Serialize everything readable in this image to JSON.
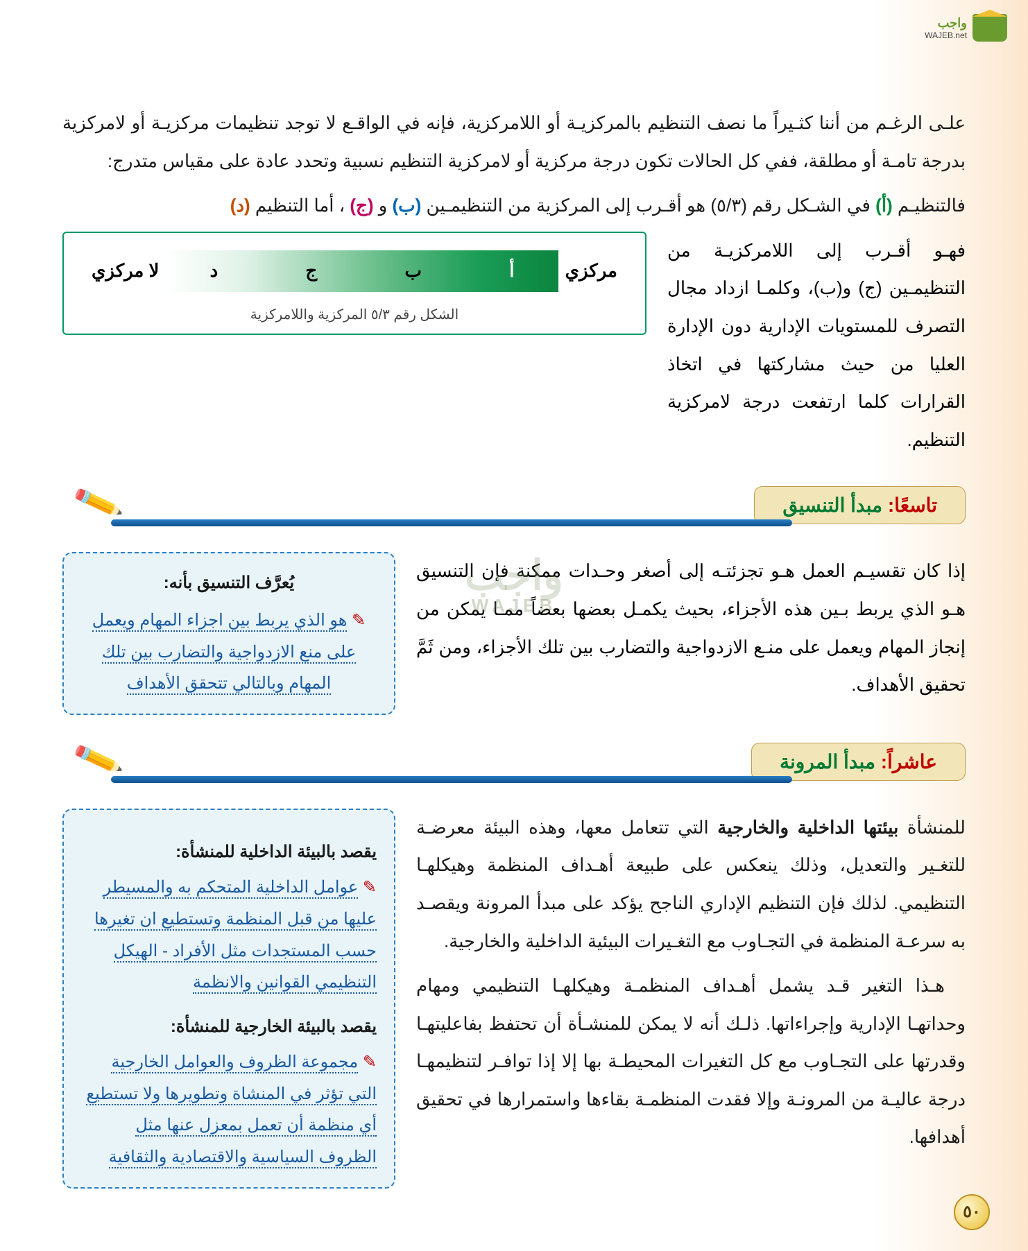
{
  "logo": {
    "brand_ar": "واجب",
    "brand_en": "WAJEB.net"
  },
  "intro": {
    "p1_a": "علـى الرغـم من أننا كثـيراً ما نصف التنظيم بالمركزيـة أو اللامركزية، فإنه في الواقـع لا توجد تنظيمات مركزيـة أو لامركزية بدرجة تامـة أو مطلقة، ففي كل الحالات تكون درجة مركزية أو لامركزية التنظيم نسبية وتحدد عادة على مقياس متدرج:",
    "p2_lead": "فالتنظيـم ",
    "p2_a": "(أ)",
    "p2_mid1": " في الشـكل رقم (٥/٣) هو أقـرب إلى المركزية من التنظيمـين ",
    "p2_b": "(ب)",
    "p2_and1": " و",
    "p2_c": "(ج)",
    "p2_mid2": "، أما التنظيم ",
    "p2_d": "(د)"
  },
  "aside1": "فهـو أقـرب إلى اللامركزيـة من التنظيمـين (ج) و(ب)، وكلمـا ازداد مجال التصرف للمستويات الإدارية دون الإدارة العليا من حيث مشاركتها في اتخاذ القرارات كلما ارتفعت درجة لامركزية التنظيم.",
  "diagram": {
    "right_label": "مركزي",
    "left_label": "لا مركزي",
    "letters": [
      "أ",
      "ب",
      "ج",
      "د"
    ],
    "caption": "الشكل رقم ٥/٣ المركزية واللامركزية",
    "gradient_from": "#ffffff",
    "gradient_to": "#0b853f"
  },
  "sec9": {
    "ord": "تاسعًا:",
    "name": "مبدأ التنسيق",
    "body": "إذا كان تقسيـم العمل هـو تجزئتـه إلى أصغر وحـدات ممكنة فإن التنسيق هـو الذي يربط بـين هذه الأجزاء، بحيث يكمـل بعضها بعضاً ممـا يمكن من إنجاز المهام ويعمل على منـع الازدواجية والتضارب بين تلك الأجزاء، ومن ثَمَّ تحقيق الأهداف.",
    "note_title": "يُعرَّف التنسيق بأنه:",
    "note_body": "هو الذي يربط بين اجزاء المهام ويعمل على منع الازدواجية والتضارب بين تلك المهام  وبالتالي تتحقق الأهداف"
  },
  "sec10": {
    "ord": "عاشراً:",
    "name": "مبدأ المرونة",
    "p1_lead": "للمنشأة ",
    "p1_bold": "بيئتها الداخلية والخارجية",
    "p1_rest": " التي تتعامل معها، وهذه البيئة معرضـة للتغـير والتعديل، وذلك ينعكس على طبيعة أهـداف المنظمة وهيكلهـا التنظيمي. لذلك فإن التنظيم الإداري الناجح يؤكد على مبدأ المرونة ويقصـد به سرعـة المنظمة في التجـاوب مع التغـيرات البيئية الداخلية والخارجية.",
    "p2": "هـذا التغير قـد يشمل أهـداف المنظمـة وهيكلهـا التنظيمي ومهام وحداتهـا الإدارية وإجراءاتها. ذلـك أنه لا يمكن للمنشـأة أن تحتفظ بفاعليتهـا وقدرتها على التجـاوب مع كل التغيرات المحيطـة بها إلا إذا توافـر لتنظيمهـا درجة عاليـة من المرونـة وإلا فقدت المنظمـة بقاءها واستمرارها في تحقيق أهدافها.",
    "note_t1": "يقصد بالبيئة الداخلية للمنشأة:",
    "note_b1": "عوامل الداخلية المتحكم به والمسيطر عليها من قبل المنظمة وتستطيع ان تغيرها حسب المستجدات مثل الأفراد - الهيكل التنظيمي القوانين  والانظمة",
    "note_t2": "يقصد بالبيئة الخارجية للمنشأة:",
    "note_b2": "مجموعة  الظروف والعوامل الخارجية التي تؤثر في المنشاة وتطويرها ولا تستطيع أي منظمة أن تعمل بمعزل عنها مثل الظروف السياسية والاقتصادية والثقافية"
  },
  "watermark": {
    "ar": "واجب",
    "en": "WAJEB"
  },
  "page_number": "٥٠",
  "colors": {
    "green": "#008a3c",
    "blue": "#0066b3",
    "magenta": "#c00060",
    "orange": "#c05000",
    "tab_bg": "#f2e6b8",
    "note_bg": "#e8f4f8"
  }
}
